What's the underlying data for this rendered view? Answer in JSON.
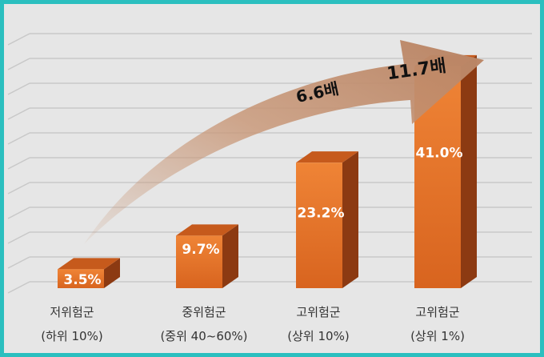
{
  "chart_data": {
    "type": "bar",
    "title": "",
    "categories": [
      "저위험군",
      "중위험군",
      "고위험군",
      "고위험군"
    ],
    "subcategories": [
      "(하위 10%)",
      "(중위 40~60%)",
      "(상위 10%)",
      "(상위 1%)"
    ],
    "values": [
      3.5,
      9.7,
      23.2,
      41.0
    ],
    "data_labels": [
      "3.5%",
      "9.7%",
      "23.2%",
      "41.0%"
    ],
    "ylim": [
      0,
      45
    ],
    "grid": true,
    "annotations": [
      "6.6배",
      "11.7배"
    ],
    "colors": {
      "front": "#e8762c",
      "top": "#c65a1c",
      "side": "#8c3a12",
      "arrow": "#c9997a",
      "border": "#2bbfbf"
    }
  }
}
